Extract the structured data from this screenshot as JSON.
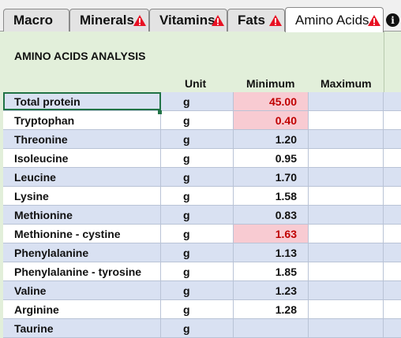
{
  "tabs": [
    {
      "label": "Macro",
      "warning": false,
      "active": false
    },
    {
      "label": "Minerals",
      "warning": true,
      "active": false
    },
    {
      "label": "Vitamins",
      "warning": true,
      "active": false
    },
    {
      "label": "Fats",
      "warning": true,
      "active": false
    },
    {
      "label": "Amino Acids",
      "warning": true,
      "active": true
    }
  ],
  "info_icon": "info-icon",
  "warning_icon": "warning-triangle-icon",
  "colors": {
    "warning": "#e81123",
    "alert_bg": "#f8cbd2",
    "alert_text": "#c00000",
    "band": "#d9e1f2",
    "sheet_bg": "#e2efda"
  },
  "section_title": "AMINO ACIDS ANALYSIS",
  "columns": {
    "unit": "Unit",
    "minimum": "Minimum",
    "maximum": "Maximum"
  },
  "rows": [
    {
      "name": "Total protein",
      "unit": "g",
      "min": "45.00",
      "max": "",
      "alert": true
    },
    {
      "name": "Tryptophan",
      "unit": "g",
      "min": "0.40",
      "max": "",
      "alert": true
    },
    {
      "name": "Threonine",
      "unit": "g",
      "min": "1.20",
      "max": "",
      "alert": false
    },
    {
      "name": "Isoleucine",
      "unit": "g",
      "min": "0.95",
      "max": "",
      "alert": false
    },
    {
      "name": "Leucine",
      "unit": "g",
      "min": "1.70",
      "max": "",
      "alert": false
    },
    {
      "name": "Lysine",
      "unit": "g",
      "min": "1.58",
      "max": "",
      "alert": false
    },
    {
      "name": "Methionine",
      "unit": "g",
      "min": "0.83",
      "max": "",
      "alert": false
    },
    {
      "name": "Methionine - cystine",
      "unit": "g",
      "min": "1.63",
      "max": "",
      "alert": true
    },
    {
      "name": "Phenylalanine",
      "unit": "g",
      "min": "1.13",
      "max": "",
      "alert": false
    },
    {
      "name": "Phenylalanine - tyrosine",
      "unit": "g",
      "min": "1.85",
      "max": "",
      "alert": false
    },
    {
      "name": "Valine",
      "unit": "g",
      "min": "1.23",
      "max": "",
      "alert": false
    },
    {
      "name": "Arginine",
      "unit": "g",
      "min": "1.28",
      "max": "",
      "alert": false
    },
    {
      "name": "Taurine",
      "unit": "g",
      "min": "",
      "max": "",
      "alert": false
    }
  ],
  "selected_row": 0
}
